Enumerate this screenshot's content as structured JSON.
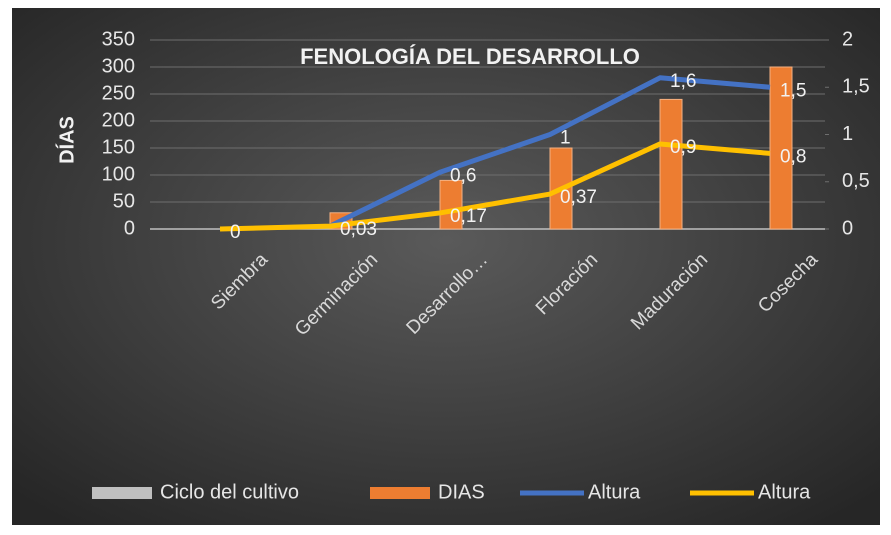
{
  "chart_data": {
    "type": "bar",
    "title": "FENOLOGÍA DEL  DESARROLLO",
    "y_label": "DÍAS",
    "categories": [
      "Siembra",
      "Germinación",
      "Desarrollo…",
      "Floración",
      "Maduración",
      "Cosecha"
    ],
    "series": [
      {
        "name": "Ciclo del cultivo",
        "type": "bar",
        "color": "#bfbfbf",
        "values": [
          0,
          0,
          0,
          0,
          0,
          0
        ]
      },
      {
        "name": "DIAS",
        "type": "bar",
        "color": "#ed7d31",
        "values": [
          0,
          30,
          90,
          150,
          240,
          300
        ]
      },
      {
        "name": "Altura",
        "type": "line",
        "axis": "y2",
        "color": "#4472c4",
        "values": [
          null,
          0.03,
          0.6,
          1,
          1.6,
          1.5
        ],
        "value_labels": [
          null,
          null,
          "0,6",
          "1",
          "1,6",
          "1,5"
        ]
      },
      {
        "name": "Altura",
        "type": "line",
        "axis": "y2",
        "color": "#ffc000",
        "values": [
          0,
          0.03,
          0.17,
          0.37,
          0.9,
          0.8
        ],
        "value_labels": [
          "0",
          "0,03",
          "0,17",
          "0,37",
          "0,9",
          "0,8"
        ]
      }
    ],
    "ylim": [
      0,
      350
    ],
    "yticks": [
      0,
      50,
      100,
      150,
      200,
      250,
      300,
      350
    ],
    "y2lim": [
      0,
      2
    ],
    "y2ticks": [
      0,
      {
        "value": 0.5,
        "label": "0,5"
      },
      1,
      {
        "value": 1.5,
        "label": "1,5"
      },
      2
    ],
    "grid": true,
    "legend": "bottom"
  }
}
